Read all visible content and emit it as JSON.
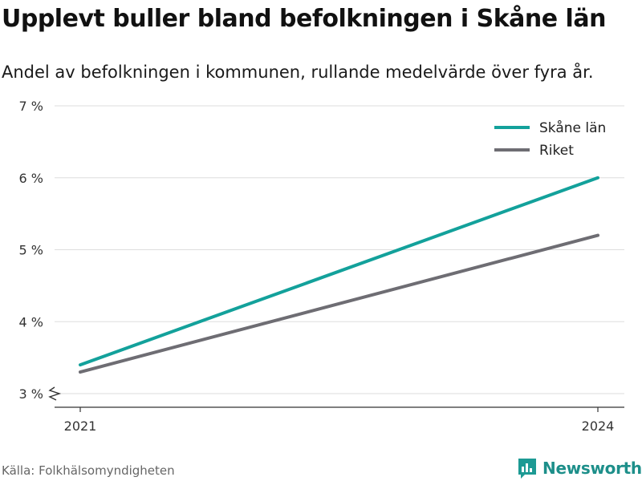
{
  "title": "Upplevt buller bland befolkningen i Skåne län",
  "subtitle": "Andel av befolkningen i kommunen, rullande medelvärde över fyra år.",
  "source": "Källa: Folkhälsomyndigheten",
  "brand": {
    "name": "Newsworthy",
    "icon": "bar-chart-logo-icon",
    "color": "#1d9a94"
  },
  "chart_data": {
    "type": "line",
    "x": [
      "2021",
      "2024"
    ],
    "series": [
      {
        "name": "Skåne län",
        "values": [
          3.4,
          6.0
        ],
        "color": "#13a19b"
      },
      {
        "name": "Riket",
        "values": [
          3.3,
          5.2
        ],
        "color": "#6e6d73"
      }
    ],
    "ylim": [
      3,
      7
    ],
    "yticks": [
      3,
      4,
      5,
      6,
      7
    ],
    "ytick_labels": [
      "3 %",
      "4 %",
      "5 %",
      "6 %",
      "7 %"
    ],
    "grid": true,
    "legend": "top-right",
    "y_axis_break": true
  }
}
